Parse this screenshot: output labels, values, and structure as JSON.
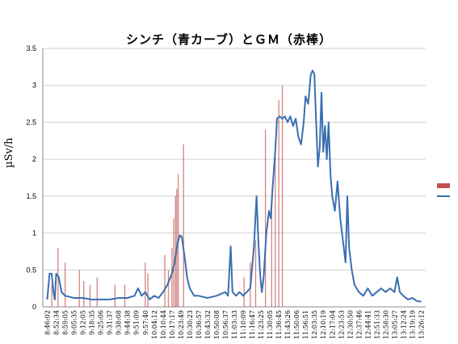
{
  "chart_data": {
    "type": "line",
    "title": "シンチ（青カーブ）とＧＭ（赤棒）",
    "ylabel": "µSv/h",
    "ylim": [
      0,
      3.5
    ],
    "yticks": [
      "0",
      "0.5",
      "1",
      "1.5",
      "2",
      "2.5",
      "3",
      "3.5"
    ],
    "grid": "horizontal",
    "legend": "right",
    "x_categories": [
      "8:46:02",
      "8:52:34",
      "8:59:05",
      "9:05:35",
      "9:12:05",
      "9:18:35",
      "9:25:06",
      "9:31:37",
      "9:38:08",
      "9:44:38",
      "9:51:09",
      "9:57:40",
      "10:04:12",
      "10:10:44",
      "10:17:17",
      "10:23:49",
      "10:30:23",
      "10:36:57",
      "10:43:32",
      "10:50:08",
      "10:56:37",
      "11:03:33",
      "11:10:09",
      "11:16:47",
      "11:23:25",
      "11:30:05",
      "11:36:45",
      "11:43:26",
      "11:50:06",
      "11:56:51",
      "12:03:35",
      "12:10:19",
      "12:17:04",
      "12:23:53",
      "12:30:50",
      "12:37:46",
      "12:44:41",
      "12:51:33",
      "12:58:30",
      "13:05:27",
      "13:12:24",
      "13:19:19",
      "13:26:12"
    ],
    "series": [
      {
        "name": "",
        "color": "#c0504d",
        "kind": "bar",
        "points": [
          [
            0.5,
            0.3
          ],
          [
            1.2,
            0.8
          ],
          [
            2.0,
            0.6
          ],
          [
            3.6,
            0.5
          ],
          [
            4.1,
            0.35
          ],
          [
            4.8,
            0.3
          ],
          [
            5.6,
            0.4
          ],
          [
            7.6,
            0.3
          ],
          [
            8.7,
            0.3
          ],
          [
            11.0,
            0.6
          ],
          [
            11.3,
            0.45
          ],
          [
            13.2,
            0.7
          ],
          [
            13.6,
            0.5
          ],
          [
            14.0,
            0.8
          ],
          [
            14.2,
            1.2
          ],
          [
            14.4,
            1.5
          ],
          [
            14.55,
            1.6
          ],
          [
            14.7,
            1.8
          ],
          [
            15.3,
            2.2
          ],
          [
            22.1,
            0.4
          ],
          [
            22.8,
            0.6
          ],
          [
            23.4,
            0.9
          ],
          [
            24.5,
            2.4
          ],
          [
            25.2,
            1.4
          ],
          [
            25.6,
            2.2
          ],
          [
            26.0,
            2.8
          ],
          [
            26.4,
            3.0
          ]
        ]
      },
      {
        "name": "",
        "color": "#3a6fb0",
        "kind": "line",
        "points": [
          [
            0,
            0.1
          ],
          [
            0.25,
            0.45
          ],
          [
            0.5,
            0.45
          ],
          [
            0.7,
            0.2
          ],
          [
            0.85,
            0.1
          ],
          [
            1.0,
            0.45
          ],
          [
            1.3,
            0.4
          ],
          [
            1.6,
            0.2
          ],
          [
            2.0,
            0.15
          ],
          [
            3.0,
            0.12
          ],
          [
            4.0,
            0.12
          ],
          [
            5.0,
            0.1
          ],
          [
            6.0,
            0.1
          ],
          [
            7.0,
            0.1
          ],
          [
            8.0,
            0.12
          ],
          [
            9.0,
            0.12
          ],
          [
            9.8,
            0.15
          ],
          [
            10.2,
            0.25
          ],
          [
            10.6,
            0.15
          ],
          [
            11.0,
            0.2
          ],
          [
            11.5,
            0.1
          ],
          [
            12.0,
            0.15
          ],
          [
            12.5,
            0.12
          ],
          [
            13.0,
            0.2
          ],
          [
            13.5,
            0.3
          ],
          [
            14.0,
            0.45
          ],
          [
            14.3,
            0.6
          ],
          [
            14.6,
            0.85
          ],
          [
            14.9,
            0.97
          ],
          [
            15.1,
            0.95
          ],
          [
            15.4,
            0.7
          ],
          [
            15.7,
            0.4
          ],
          [
            16.0,
            0.25
          ],
          [
            16.5,
            0.15
          ],
          [
            17.0,
            0.15
          ],
          [
            18.0,
            0.12
          ],
          [
            19.0,
            0.15
          ],
          [
            20.0,
            0.2
          ],
          [
            20.3,
            0.15
          ],
          [
            20.6,
            0.82
          ],
          [
            20.8,
            0.2
          ],
          [
            21.2,
            0.15
          ],
          [
            21.6,
            0.2
          ],
          [
            22.0,
            0.15
          ],
          [
            22.4,
            0.2
          ],
          [
            22.8,
            0.25
          ],
          [
            23.2,
            0.8
          ],
          [
            23.5,
            1.5
          ],
          [
            23.7,
            0.9
          ],
          [
            23.9,
            0.45
          ],
          [
            24.1,
            0.2
          ],
          [
            24.3,
            0.4
          ],
          [
            24.6,
            1.0
          ],
          [
            24.9,
            1.3
          ],
          [
            25.1,
            1.2
          ],
          [
            25.3,
            1.6
          ],
          [
            25.6,
            2.1
          ],
          [
            25.8,
            2.55
          ],
          [
            26.1,
            2.58
          ],
          [
            26.4,
            2.55
          ],
          [
            26.7,
            2.58
          ],
          [
            27.0,
            2.5
          ],
          [
            27.3,
            2.58
          ],
          [
            27.6,
            2.45
          ],
          [
            27.9,
            2.55
          ],
          [
            28.2,
            2.3
          ],
          [
            28.5,
            2.2
          ],
          [
            28.8,
            2.5
          ],
          [
            29.0,
            2.85
          ],
          [
            29.3,
            2.75
          ],
          [
            29.6,
            3.15
          ],
          [
            29.8,
            3.2
          ],
          [
            30.0,
            3.15
          ],
          [
            30.2,
            2.5
          ],
          [
            30.4,
            1.9
          ],
          [
            30.6,
            2.15
          ],
          [
            30.8,
            2.9
          ],
          [
            31.0,
            2.1
          ],
          [
            31.2,
            2.45
          ],
          [
            31.4,
            2.0
          ],
          [
            31.6,
            2.5
          ],
          [
            31.8,
            1.8
          ],
          [
            32.0,
            1.5
          ],
          [
            32.3,
            1.3
          ],
          [
            32.6,
            1.7
          ],
          [
            32.9,
            1.2
          ],
          [
            33.2,
            0.9
          ],
          [
            33.5,
            0.6
          ],
          [
            33.7,
            1.5
          ],
          [
            33.9,
            0.8
          ],
          [
            34.2,
            0.5
          ],
          [
            34.5,
            0.3
          ],
          [
            35.0,
            0.2
          ],
          [
            35.5,
            0.15
          ],
          [
            36.0,
            0.25
          ],
          [
            36.5,
            0.15
          ],
          [
            37.0,
            0.2
          ],
          [
            37.5,
            0.25
          ],
          [
            38.0,
            0.2
          ],
          [
            38.5,
            0.25
          ],
          [
            39.0,
            0.2
          ],
          [
            39.3,
            0.4
          ],
          [
            39.6,
            0.2
          ],
          [
            40.0,
            0.15
          ],
          [
            40.5,
            0.1
          ],
          [
            41.0,
            0.12
          ],
          [
            41.5,
            0.08
          ],
          [
            42.0,
            0.07
          ]
        ]
      }
    ]
  }
}
